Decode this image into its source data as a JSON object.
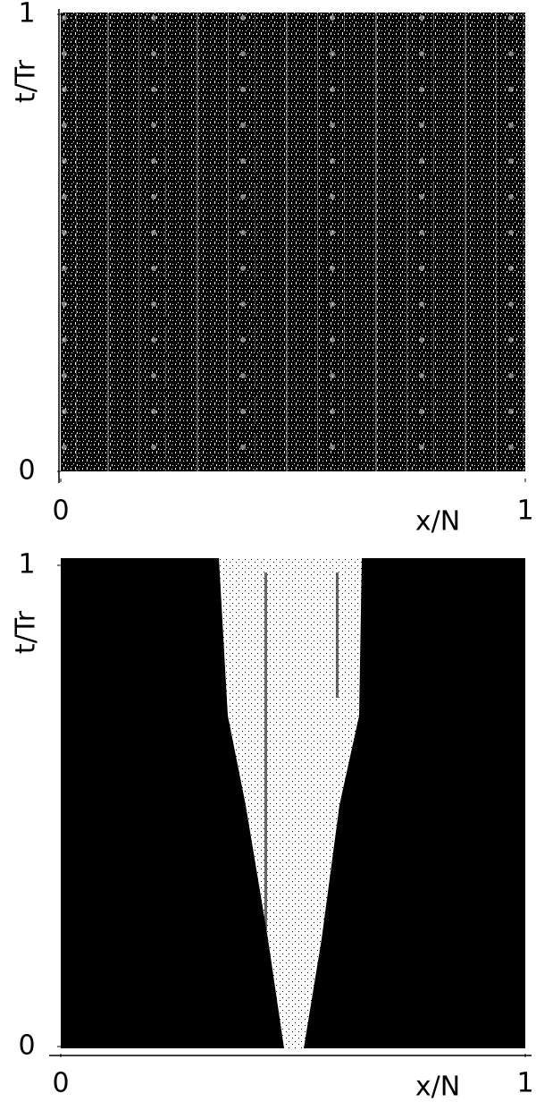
{
  "chart_data": [
    {
      "type": "image",
      "xlabel": "x/N",
      "ylabel": "t/Tr",
      "xlim": [
        0,
        1
      ],
      "ylim": [
        0,
        1
      ],
      "xticks": [
        0,
        1
      ],
      "yticks": [
        0,
        1
      ]
    },
    {
      "type": "image",
      "xlabel": "x/N",
      "ylabel": "t/Tr",
      "xlim": [
        0,
        1
      ],
      "ylim": [
        0,
        1
      ],
      "xticks": [
        0,
        1
      ],
      "yticks": [
        0,
        1
      ]
    }
  ]
}
